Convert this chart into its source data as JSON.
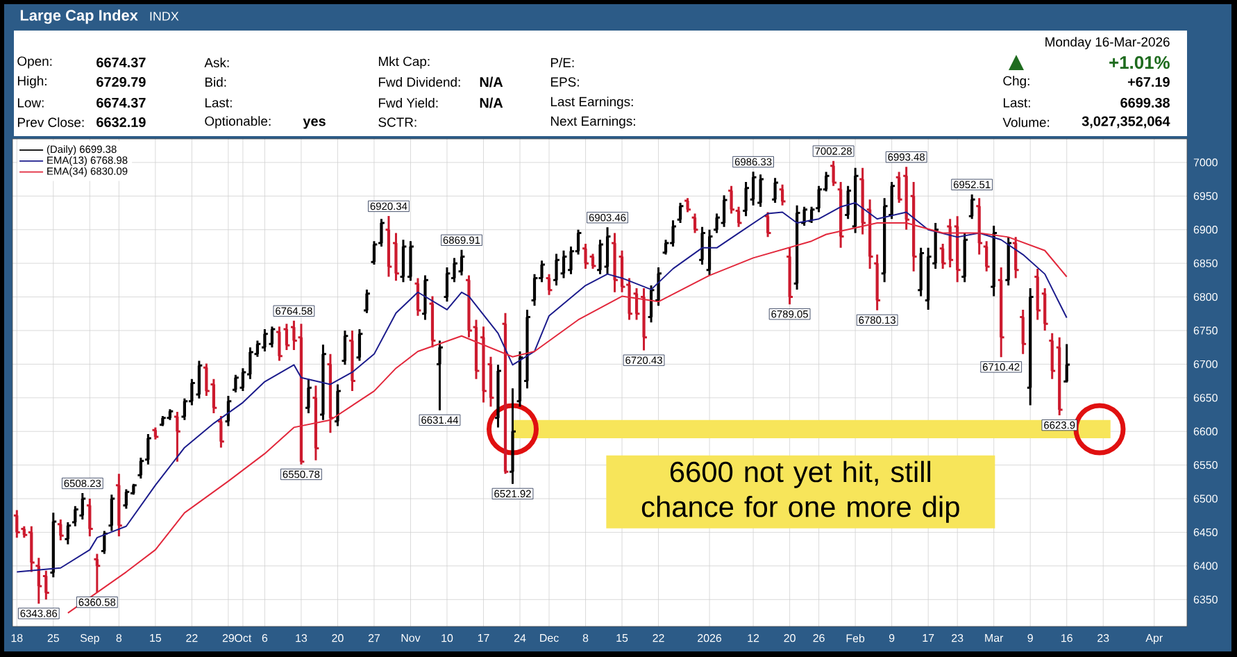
{
  "chart_data": {
    "type": "candlestick",
    "title": "Large Cap Index",
    "subtitle": "INDX",
    "categories": [
      "18",
      null,
      null,
      null,
      null,
      "25",
      null,
      null,
      null,
      null,
      "Sep",
      null,
      null,
      null,
      "8",
      null,
      null,
      null,
      null,
      "15",
      null,
      null,
      null,
      null,
      "22",
      null,
      null,
      null,
      null,
      "29",
      null,
      "Oct",
      null,
      null,
      "6",
      null,
      null,
      null,
      null,
      "13",
      null,
      null,
      null,
      null,
      "20",
      null,
      null,
      null,
      null,
      "27",
      null,
      null,
      null,
      null,
      "Nov",
      null,
      null,
      null,
      null,
      "10",
      null,
      null,
      null,
      null,
      "17",
      null,
      null,
      null,
      null,
      "24",
      null,
      null,
      null,
      "Dec",
      null,
      null,
      null,
      null,
      "8",
      null,
      null,
      null,
      null,
      "15",
      null,
      null,
      null,
      null,
      "22",
      null,
      null,
      null,
      null,
      null,
      null,
      "2026",
      null,
      null,
      null,
      null,
      null,
      "12",
      null,
      null,
      null,
      null,
      "20",
      null,
      null,
      null,
      "26",
      null,
      null,
      null,
      null,
      "Feb",
      null,
      null,
      null,
      null,
      "9",
      null,
      null,
      null,
      null,
      "17",
      null,
      null,
      null,
      "23",
      null,
      null,
      null,
      null,
      "Mar",
      null,
      null,
      null,
      null,
      "9",
      null,
      null,
      null,
      null,
      "16",
      null,
      null,
      null,
      null,
      "23",
      null,
      null,
      null,
      null,
      null,
      null,
      "Apr",
      null,
      null,
      null,
      null
    ],
    "series": [
      {
        "name": "(Daily) 6699.38",
        "type": "candlestick",
        "ohlc": [
          [
            6475,
            6483,
            6442,
            6450
          ],
          [
            6455,
            6459,
            6442,
            6446
          ],
          [
            6450,
            6459,
            6391,
            6405
          ],
          [
            6400,
            6412,
            6343.86,
            6370
          ],
          [
            6385,
            6393,
            6350,
            6360
          ],
          [
            6390,
            6479,
            6383,
            6466
          ],
          [
            6462,
            6469,
            6438,
            6445
          ],
          [
            6440,
            6465,
            6432,
            6460
          ],
          [
            6465,
            6489,
            6459,
            6484
          ],
          [
            6475,
            6508.23,
            6469,
            6500
          ],
          [
            6490,
            6500,
            6444,
            6455
          ],
          [
            6410,
            6418,
            6360.58,
            6400
          ],
          [
            6422,
            6452,
            6418,
            6448
          ],
          [
            6460,
            6506,
            6452,
            6500
          ],
          [
            6520,
            6537,
            6444,
            6460
          ],
          [
            6490,
            6514,
            6485,
            6510
          ],
          [
            6508,
            6522,
            6506,
            6520
          ],
          [
            6535,
            6561,
            6530,
            6556
          ],
          [
            6558,
            6596,
            6551,
            6590
          ],
          [
            6602,
            6606,
            6588,
            6592
          ],
          [
            6610,
            6623,
            6608,
            6620
          ],
          [
            6620,
            6633,
            6617,
            6630
          ],
          [
            6622,
            6629,
            6555,
            6600
          ],
          [
            6622,
            6649,
            6617,
            6645
          ],
          [
            6645,
            6678,
            6639,
            6672
          ],
          [
            6655,
            6705,
            6649,
            6698
          ],
          [
            6695,
            6701,
            6653,
            6660
          ],
          [
            6670,
            6678,
            6627,
            6635
          ],
          [
            6615,
            6623,
            6576,
            6585
          ],
          [
            6615,
            6653,
            6608,
            6645
          ],
          [
            6662,
            6684,
            6658,
            6680
          ],
          [
            6665,
            6694,
            6660,
            6688
          ],
          [
            6685,
            6725,
            6678,
            6718
          ],
          [
            6715,
            6735,
            6711,
            6730
          ],
          [
            6725,
            6752,
            6719,
            6745
          ],
          [
            6730,
            6756,
            6725,
            6752
          ],
          [
            6748,
            6756,
            6705,
            6712
          ],
          [
            6752,
            6760,
            6721,
            6728
          ],
          [
            6755,
            6764.58,
            6721,
            6735
          ],
          [
            6740,
            6760,
            6550.78,
            6555
          ],
          [
            6635,
            6678,
            6627,
            6665
          ],
          [
            6650,
            6668,
            6557,
            6575
          ],
          [
            6625,
            6729,
            6617,
            6715
          ],
          [
            6700,
            6715,
            6598,
            6620
          ],
          [
            6615,
            6670,
            6608,
            6660
          ],
          [
            6705,
            6750,
            6699,
            6742
          ],
          [
            6735,
            6750,
            6660,
            6675
          ],
          [
            6710,
            6752,
            6705,
            6745
          ],
          [
            6780,
            6811,
            6776,
            6805
          ],
          [
            6852,
            6883,
            6848,
            6878
          ],
          [
            6880,
            6916,
            6875,
            6910
          ],
          [
            6900,
            6920.34,
            6830,
            6845
          ],
          [
            6880,
            6895,
            6824,
            6835
          ],
          [
            6830,
            6885,
            6822,
            6875
          ],
          [
            6830,
            6883,
            6824,
            6875
          ],
          [
            6820,
            6828,
            6772,
            6780
          ],
          [
            6775,
            6832,
            6766,
            6825
          ],
          [
            6790,
            6801,
            6725,
            6735
          ],
          [
            6700,
            6735,
            6631.44,
            6725
          ],
          [
            6800,
            6844,
            6793,
            6835
          ],
          [
            6828,
            6858,
            6822,
            6850
          ],
          [
            6838,
            6869.91,
            6832,
            6860
          ],
          [
            6825,
            6832,
            6740,
            6750
          ],
          [
            6755,
            6766,
            6678,
            6690
          ],
          [
            6740,
            6756,
            6643,
            6660
          ],
          [
            6700,
            6711,
            6637,
            6650
          ],
          [
            6620,
            6699,
            6606,
            6690
          ],
          [
            6760,
            6776,
            6537,
            6540
          ],
          [
            6540,
            6664,
            6521.92,
            6600
          ],
          [
            6645,
            6719,
            6637,
            6710
          ],
          [
            6675,
            6781,
            6664,
            6770
          ],
          [
            6795,
            6834,
            6787,
            6828
          ],
          [
            6828,
            6854,
            6822,
            6848
          ],
          [
            6828,
            6834,
            6803,
            6810
          ],
          [
            6825,
            6864,
            6817,
            6855
          ],
          [
            6835,
            6869,
            6828,
            6860
          ],
          [
            6840,
            6875,
            6834,
            6868
          ],
          [
            6868,
            6900,
            6863,
            6895
          ],
          [
            6872,
            6879,
            6842,
            6850
          ],
          [
            6860,
            6864,
            6842,
            6846
          ],
          [
            6840,
            6885,
            6834,
            6878
          ],
          [
            6845,
            6903.46,
            6834,
            6890
          ],
          [
            6880,
            6895,
            6807,
            6825
          ],
          [
            6860,
            6869,
            6807,
            6815
          ],
          [
            6818,
            6828,
            6766,
            6775
          ],
          [
            6805,
            6813,
            6766,
            6775
          ],
          [
            6800,
            6813,
            6720.43,
            6740
          ],
          [
            6770,
            6817,
            6762,
            6810
          ],
          [
            6795,
            6844,
            6787,
            6835
          ],
          [
            6866,
            6885,
            6863,
            6880
          ],
          [
            6880,
            6914,
            6875,
            6905
          ],
          [
            6915,
            6940,
            6910,
            6935
          ],
          [
            6943,
            6947,
            6926,
            6930
          ],
          [
            6918,
            6924,
            6895,
            6900
          ],
          [
            6855,
            6904,
            6848,
            6895
          ],
          [
            6840,
            6900,
            6832,
            6890
          ],
          [
            6900,
            6924,
            6895,
            6918
          ],
          [
            6910,
            6951,
            6904,
            6944
          ],
          [
            6958,
            6965,
            6924,
            6930
          ],
          [
            6928,
            6934,
            6904,
            6910
          ],
          [
            6928,
            6971,
            6920,
            6962
          ],
          [
            6945,
            6986.33,
            6936,
            6978
          ],
          [
            6940,
            6982,
            6934,
            6975
          ],
          [
            6920,
            6926,
            6889,
            6895
          ],
          [
            6945,
            6977,
            6940,
            6970
          ],
          [
            6960,
            6967,
            6936,
            6942
          ],
          [
            6860,
            6873,
            6789.05,
            6800
          ],
          [
            6820,
            6936,
            6811,
            6925
          ],
          [
            6910,
            6934,
            6906,
            6930
          ],
          [
            6913,
            6934,
            6910,
            6930
          ],
          [
            6932,
            6965,
            6926,
            6960
          ],
          [
            6960,
            6986,
            6957,
            6980
          ],
          [
            6995,
            7002.28,
            6965,
            6970
          ],
          [
            6960,
            6971,
            6873,
            6890
          ],
          [
            6922,
            6965,
            6916,
            6958
          ],
          [
            6905,
            6992,
            6895,
            6980
          ],
          [
            6975,
            6992,
            6893,
            6910
          ],
          [
            6930,
            6945,
            6842,
            6860
          ],
          [
            6850,
            6863,
            6780.13,
            6795
          ],
          [
            6835,
            6947,
            6822,
            6935
          ],
          [
            6922,
            6971,
            6916,
            6965
          ],
          [
            6978,
            6986,
            6940,
            6945
          ],
          [
            6980,
            6993.48,
            6900,
            6915
          ],
          [
            6950,
            6971,
            6838,
            6860
          ],
          [
            6810,
            6873,
            6801,
            6865
          ],
          [
            6795,
            6873,
            6781,
            6860
          ],
          [
            6850,
            6910,
            6842,
            6900
          ],
          [
            6872,
            6879,
            6842,
            6850
          ],
          [
            6905,
            6916,
            6844,
            6855
          ],
          [
            6905,
            6920,
            6822,
            6840
          ],
          [
            6830,
            6895,
            6822,
            6885
          ],
          [
            6920,
            6952.51,
            6916,
            6945
          ],
          [
            6935,
            6947,
            6863,
            6880
          ],
          [
            6875,
            6883,
            6838,
            6845
          ],
          [
            6815,
            6906,
            6801,
            6895
          ],
          [
            6825,
            6844,
            6710.42,
            6740
          ],
          [
            6825,
            6889,
            6817,
            6880
          ],
          [
            6880,
            6889,
            6828,
            6840
          ],
          [
            6770,
            6781,
            6715,
            6730
          ],
          [
            6665,
            6813,
            6639,
            6800
          ],
          [
            6830,
            6842,
            6766,
            6780
          ],
          [
            6805,
            6813,
            6750,
            6760
          ],
          [
            6735,
            6746,
            6678,
            6690
          ],
          [
            6725,
            6740,
            6623.9,
            6632.19
          ],
          [
            6674.37,
            6729.79,
            6674.37,
            6699.38
          ],
          null,
          null,
          null,
          null,
          null,
          null,
          null,
          null,
          null,
          null,
          null,
          null,
          null,
          null,
          null,
          null
        ],
        "colors": [
          "#cc1a2e",
          "#cc1a2e",
          "#cc1a2e",
          "#cc1a2e",
          "#cc1a2e",
          "#000000",
          "#cc1a2e",
          "#000000",
          "#000000",
          "#000000",
          "#cc1a2e",
          "#cc1a2e",
          "#000000",
          "#000000",
          "#cc1a2e",
          "#000000",
          "#000000",
          "#000000",
          "#000000",
          "#cc1a2e",
          "#000000",
          "#000000",
          "#cc1a2e",
          "#000000",
          "#000000",
          "#000000",
          "#cc1a2e",
          "#cc1a2e",
          "#cc1a2e",
          "#000000",
          "#000000",
          "#000000",
          "#000000",
          "#000000",
          "#000000",
          "#000000",
          "#cc1a2e",
          "#cc1a2e",
          "#cc1a2e",
          "#cc1a2e",
          "#000000",
          "#cc1a2e",
          "#000000",
          "#cc1a2e",
          "#000000",
          "#000000",
          "#cc1a2e",
          "#000000",
          "#000000",
          "#000000",
          "#000000",
          "#cc1a2e",
          "#cc1a2e",
          "#000000",
          "#000000",
          "#cc1a2e",
          "#000000",
          "#cc1a2e",
          "#000000",
          "#000000",
          "#000000",
          "#000000",
          "#cc1a2e",
          "#cc1a2e",
          "#cc1a2e",
          "#cc1a2e",
          "#000000",
          "#cc1a2e",
          "#000000",
          "#000000",
          "#000000",
          "#000000",
          "#000000",
          "#cc1a2e",
          "#000000",
          "#000000",
          "#000000",
          "#000000",
          "#cc1a2e",
          "#cc1a2e",
          "#000000",
          "#000000",
          "#cc1a2e",
          "#cc1a2e",
          "#cc1a2e",
          "#cc1a2e",
          "#cc1a2e",
          "#000000",
          "#000000",
          "#000000",
          "#000000",
          "#000000",
          "#cc1a2e",
          "#cc1a2e",
          "#000000",
          "#000000",
          "#000000",
          "#000000",
          "#cc1a2e",
          "#cc1a2e",
          "#000000",
          "#000000",
          "#000000",
          "#cc1a2e",
          "#000000",
          "#cc1a2e",
          "#cc1a2e",
          "#000000",
          "#000000",
          "#000000",
          "#000000",
          "#000000",
          "#cc1a2e",
          "#cc1a2e",
          "#000000",
          "#000000",
          "#cc1a2e",
          "#cc1a2e",
          "#cc1a2e",
          "#000000",
          "#000000",
          "#cc1a2e",
          "#cc1a2e",
          "#cc1a2e",
          "#000000",
          "#000000",
          "#000000",
          "#cc1a2e",
          "#cc1a2e",
          "#cc1a2e",
          "#000000",
          "#000000",
          "#cc1a2e",
          "#cc1a2e",
          "#000000",
          "#cc1a2e",
          "#000000",
          "#cc1a2e",
          "#cc1a2e",
          "#000000",
          "#cc1a2e",
          "#cc1a2e",
          "#cc1a2e",
          "#cc1a2e",
          "#000000",
          null,
          null,
          null,
          null,
          null,
          null,
          null,
          null,
          null,
          null,
          null,
          null,
          null,
          null,
          null,
          null
        ]
      },
      {
        "name": "EMA(13) 6768.98",
        "type": "line",
        "color": "#1c1c8c",
        "values": [
          6391,
          null,
          null,
          null,
          null,
          null,
          6397,
          null,
          null,
          null,
          6424,
          6442,
          null,
          null,
          null,
          6459,
          null,
          null,
          null,
          6520,
          null,
          null,
          null,
          6576,
          null,
          null,
          null,
          6612,
          null,
          null,
          null,
          6643,
          null,
          null,
          6674,
          null,
          null,
          null,
          6699,
          6680,
          null,
          null,
          null,
          6670,
          null,
          null,
          6688,
          null,
          null,
          6715,
          null,
          null,
          6776,
          null,
          null,
          6807,
          null,
          null,
          null,
          6781,
          null,
          6807,
          6801,
          null,
          null,
          null,
          6746,
          null,
          6699,
          null,
          null,
          6719,
          null,
          6772,
          null,
          null,
          null,
          null,
          6817,
          null,
          null,
          6834,
          null,
          6828,
          null,
          null,
          null,
          6811,
          null,
          null,
          6842,
          null,
          null,
          null,
          6873,
          null,
          6873,
          null,
          null,
          6895,
          null,
          null,
          null,
          6924,
          null,
          6926,
          null,
          6910,
          null,
          null,
          6916,
          null,
          null,
          6934,
          null,
          6940,
          null,
          null,
          6916,
          null,
          null,
          null,
          6926,
          null,
          null,
          6900,
          null,
          null,
          null,
          6889,
          null,
          null,
          6895,
          null,
          null,
          6885,
          null,
          null,
          6863,
          null,
          null,
          6834,
          null,
          null,
          6769,
          null,
          null,
          null,
          null,
          null,
          null,
          null,
          null,
          null,
          null,
          null,
          null,
          null,
          null,
          null,
          null
        ]
      },
      {
        "name": "EMA(34) 6830.09",
        "type": "line",
        "color": "#e2283c",
        "values": [
          null,
          null,
          null,
          null,
          null,
          null,
          null,
          6330,
          null,
          null,
          null,
          null,
          null,
          null,
          null,
          6391,
          null,
          null,
          null,
          6424,
          null,
          null,
          null,
          6479,
          null,
          null,
          null,
          null,
          null,
          6526,
          null,
          null,
          null,
          null,
          6567,
          null,
          null,
          null,
          6606,
          null,
          null,
          null,
          null,
          6617,
          null,
          null,
          null,
          null,
          null,
          6660,
          null,
          null,
          6694,
          null,
          null,
          6719,
          null,
          null,
          null,
          null,
          null,
          6742,
          null,
          null,
          null,
          null,
          null,
          null,
          6711,
          null,
          null,
          6719,
          null,
          null,
          null,
          null,
          null,
          6766,
          null,
          null,
          null,
          null,
          null,
          6801,
          null,
          null,
          null,
          null,
          6793,
          null,
          null,
          null,
          null,
          null,
          null,
          6832,
          null,
          null,
          null,
          null,
          null,
          6858,
          null,
          null,
          null,
          null,
          null,
          null,
          null,
          6883,
          null,
          6893,
          null,
          null,
          null,
          null,
          null,
          null,
          6910,
          null,
          null,
          null,
          6910,
          null,
          null,
          null,
          null,
          6895,
          null,
          null,
          null,
          null,
          6895,
          null,
          null,
          null,
          6889,
          null,
          null,
          null,
          null,
          6869,
          null,
          null,
          6830,
          null,
          null,
          null,
          null,
          null,
          null,
          null,
          null,
          null,
          null,
          null,
          null,
          null,
          null,
          null,
          null
        ]
      }
    ],
    "ylim": [
      6310,
      7035
    ],
    "yticks": [
      6350,
      6400,
      6450,
      6500,
      6550,
      6600,
      6650,
      6700,
      6750,
      6800,
      6850,
      6900,
      6950,
      7000
    ],
    "grid": true,
    "legend": "top left",
    "bands": [
      {
        "axis": "y",
        "from": 6590,
        "to": 6617,
        "color": "#f7e55a"
      }
    ],
    "annotations": [
      "Monday  16-Mar-2026",
      "Open:",
      "6674.37",
      "High:",
      "6729.79",
      "Low:",
      "6674.37",
      "Prev Close:",
      "6632.19",
      "Ask:",
      "Bid:",
      "Last:",
      "Optionable:",
      "yes",
      "Mkt Cap:",
      "Fwd Dividend:",
      "N/A",
      "Fwd Yield:",
      "N/A",
      "SCTR:",
      "P/E:",
      "EPS:",
      "Last Earnings:",
      "Next Earnings:",
      "+1.01%",
      "Chg:",
      "+67.19",
      "Last:",
      "6699.38",
      "Volume:",
      "3,027,352,064",
      "6600 not yet hit, still chance for one more dip",
      {
        "text": "6343.86",
        "y": 6343.86
      },
      {
        "text": "6508.23",
        "y": 6508.23
      },
      {
        "text": "6360.58",
        "y": 6360.58
      },
      {
        "text": "6764.58",
        "y": 6764.58
      },
      {
        "text": "6550.78",
        "y": 6550.78
      },
      {
        "text": "6920.34",
        "y": 6920.34
      },
      {
        "text": "6869.91",
        "y": 6869.91
      },
      {
        "text": "6631.44",
        "y": 6631.44
      },
      {
        "text": "6521.92",
        "y": 6521.92
      },
      {
        "text": "6903.46",
        "y": 6903.46
      },
      {
        "text": "6720.43",
        "y": 6720.43
      },
      {
        "text": "6986.33",
        "y": 6986.33
      },
      {
        "text": "6789.05",
        "y": 6789.05
      },
      {
        "text": "7002.28",
        "y": 7002.28
      },
      {
        "text": "6780.13",
        "y": 6780.13
      },
      {
        "text": "6993.48",
        "y": 6993.48
      },
      {
        "text": "6952.51",
        "y": 6952.51
      },
      {
        "text": "6710.42",
        "y": 6710.42
      },
      {
        "text": "6623.9",
        "y": 6623.9
      }
    ]
  }
}
